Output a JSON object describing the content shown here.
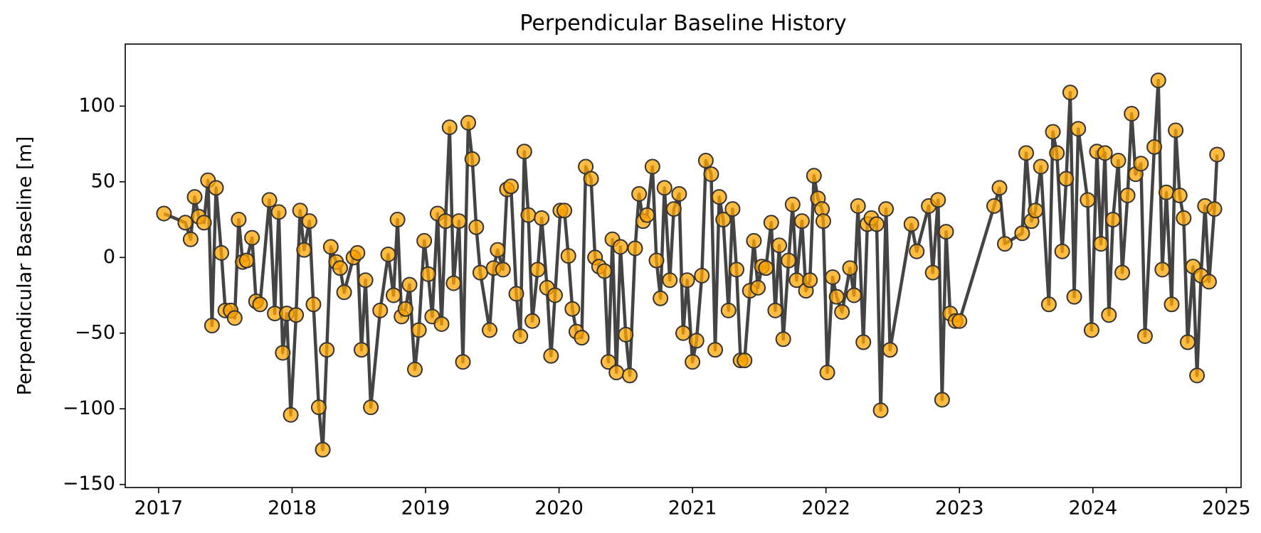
{
  "chart_data": {
    "type": "line",
    "title": "Perpendicular Baseline History",
    "ylabel": "Perpendicular Baseline [m]",
    "line_color": "#444444",
    "marker_color": "#ffa500",
    "marker_edge": "#333333",
    "xlim": [
      2016.75,
      2025.11
    ],
    "xticks": [
      2017,
      2018,
      2019,
      2020,
      2021,
      2022,
      2023,
      2024,
      2025
    ],
    "ylim": [
      -152,
      141
    ],
    "yticks": [
      {
        "value": -150,
        "label": "−150"
      },
      {
        "value": -100,
        "label": "−100"
      },
      {
        "value": -50,
        "label": "−50"
      },
      0,
      50,
      100
    ],
    "x": [
      2017.04,
      2017.2,
      2017.24,
      2017.27,
      2017.3,
      2017.34,
      2017.37,
      2017.4,
      2017.43,
      2017.47,
      2017.5,
      2017.54,
      2017.57,
      2017.6,
      2017.63,
      2017.66,
      2017.7,
      2017.73,
      2017.76,
      2017.83,
      2017.87,
      2017.9,
      2017.93,
      2017.96,
      2017.99,
      2018.03,
      2018.06,
      2018.09,
      2018.13,
      2018.16,
      2018.2,
      2018.23,
      2018.26,
      2018.29,
      2018.33,
      2018.36,
      2018.39,
      2018.46,
      2018.49,
      2018.52,
      2018.55,
      2018.59,
      2018.66,
      2018.72,
      2018.76,
      2018.79,
      2018.82,
      2018.85,
      2018.88,
      2018.92,
      2018.95,
      2018.99,
      2019.02,
      2019.05,
      2019.09,
      2019.12,
      2019.15,
      2019.18,
      2019.21,
      2019.25,
      2019.28,
      2019.32,
      2019.35,
      2019.38,
      2019.41,
      2019.48,
      2019.51,
      2019.54,
      2019.58,
      2019.61,
      2019.64,
      2019.68,
      2019.71,
      2019.74,
      2019.77,
      2019.8,
      2019.84,
      2019.87,
      2019.91,
      2019.94,
      2019.97,
      2020.01,
      2020.04,
      2020.07,
      2020.1,
      2020.13,
      2020.17,
      2020.2,
      2020.24,
      2020.27,
      2020.3,
      2020.34,
      2020.37,
      2020.4,
      2020.43,
      2020.46,
      2020.5,
      2020.53,
      2020.57,
      2020.6,
      2020.63,
      2020.66,
      2020.7,
      2020.73,
      2020.76,
      2020.79,
      2020.83,
      2020.86,
      2020.9,
      2020.93,
      2020.96,
      2021.0,
      2021.03,
      2021.07,
      2021.1,
      2021.14,
      2021.17,
      2021.2,
      2021.23,
      2021.27,
      2021.3,
      2021.33,
      2021.36,
      2021.39,
      2021.43,
      2021.46,
      2021.49,
      2021.52,
      2021.55,
      2021.59,
      2021.62,
      2021.65,
      2021.68,
      2021.72,
      2021.75,
      2021.78,
      2021.82,
      2021.85,
      2021.88,
      2021.91,
      2021.94,
      2021.97,
      2021.98,
      2022.01,
      2022.05,
      2022.08,
      2022.12,
      2022.18,
      2022.21,
      2022.24,
      2022.28,
      2022.31,
      2022.34,
      2022.38,
      2022.41,
      2022.45,
      2022.48,
      2022.64,
      2022.68,
      2022.77,
      2022.8,
      2022.84,
      2022.87,
      2022.9,
      2022.93,
      2022.97,
      2023.0,
      2023.26,
      2023.3,
      2023.34,
      2023.47,
      2023.5,
      2023.54,
      2023.57,
      2023.61,
      2023.67,
      2023.7,
      2023.73,
      2023.77,
      2023.8,
      2023.83,
      2023.86,
      2023.89,
      2023.96,
      2023.99,
      2024.03,
      2024.06,
      2024.09,
      2024.12,
      2024.15,
      2024.19,
      2024.22,
      2024.26,
      2024.29,
      2024.32,
      2024.36,
      2024.39,
      2024.46,
      2024.49,
      2024.52,
      2024.55,
      2024.59,
      2024.62,
      2024.65,
      2024.68,
      2024.71,
      2024.75,
      2024.78,
      2024.81,
      2024.84,
      2024.87,
      2024.91,
      2024.93
    ],
    "values": [
      29,
      23,
      12,
      40,
      27,
      23,
      51,
      -45,
      46,
      3,
      -35,
      -35,
      -40,
      25,
      -3,
      -2,
      13,
      -29,
      -31,
      38,
      -37,
      30,
      -63,
      -37,
      -104,
      -38,
      31,
      5,
      24,
      -31,
      -99,
      -127,
      -61,
      7,
      -3,
      -7,
      -23,
      0,
      3,
      -61,
      -15,
      -99,
      -35,
      2,
      -25,
      25,
      -39,
      -34,
      -18,
      -74,
      -48,
      11,
      -11,
      -39,
      29,
      -44,
      24,
      86,
      -17,
      24,
      -69,
      89,
      65,
      20,
      -10,
      -48,
      -7,
      5,
      -8,
      45,
      47,
      -24,
      -52,
      70,
      28,
      -42,
      -8,
      26,
      -20,
      -65,
      -25,
      31,
      31,
      1,
      -34,
      -49,
      -53,
      60,
      52,
      0,
      -6,
      -9,
      -69,
      12,
      -76,
      7,
      -51,
      -78,
      6,
      42,
      24,
      28,
      60,
      -2,
      -27,
      46,
      -15,
      32,
      42,
      -50,
      -15,
      -69,
      -55,
      -12,
      64,
      55,
      -61,
      40,
      25,
      -35,
      32,
      -8,
      -68,
      -68,
      -22,
      11,
      -20,
      -6,
      -7,
      23,
      -35,
      8,
      -54,
      -2,
      35,
      -15,
      24,
      -22,
      -15,
      54,
      39,
      32,
      24,
      -76,
      -13,
      -26,
      -36,
      -7,
      -25,
      34,
      -56,
      22,
      26,
      22,
      -101,
      32,
      -61,
      22,
      4,
      34,
      -10,
      38,
      -94,
      17,
      -37,
      -42,
      -42,
      34,
      46,
      9,
      16,
      69,
      24,
      31,
      60,
      -31,
      83,
      69,
      4,
      52,
      109,
      -26,
      85,
      38,
      -48,
      70,
      9,
      69,
      -38,
      25,
      64,
      -10,
      41,
      95,
      55,
      62,
      -52,
      73,
      117,
      -8,
      43,
      -31,
      84,
      41,
      26,
      -56,
      -6,
      -78,
      -12,
      34,
      -16,
      32,
      68
    ]
  }
}
